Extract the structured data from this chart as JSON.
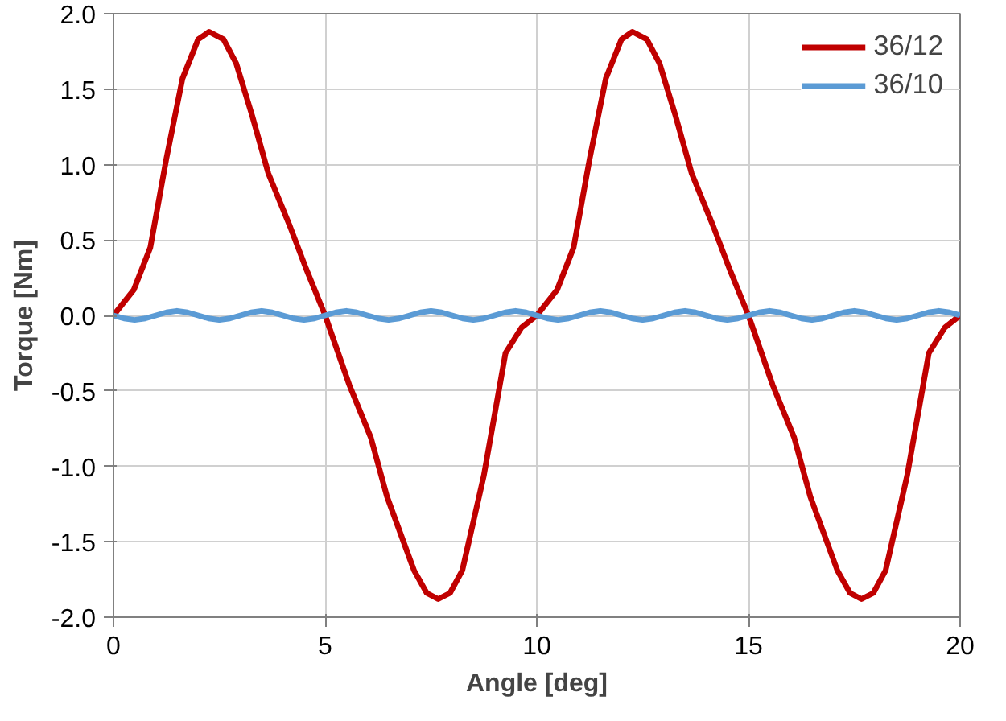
{
  "chart_data": {
    "type": "line",
    "xlabel": "Angle [deg]",
    "ylabel": "Torque [Nm]",
    "xlim": [
      0,
      20
    ],
    "ylim": [
      -2.0,
      2.0
    ],
    "xticks": [
      0,
      5,
      10,
      15,
      20
    ],
    "yticks": [
      {
        "value": -2.0,
        "label": "-2.0"
      },
      {
        "value": -1.5,
        "label": "-1.5"
      },
      {
        "value": -1.0,
        "label": "-1.0"
      },
      {
        "value": -0.5,
        "label": "-0.5"
      },
      {
        "value": 0,
        "label": "0.0"
      },
      {
        "value": 0.5,
        "label": "0.5"
      },
      {
        "value": 1.0,
        "label": "1.0"
      },
      {
        "value": 1.5,
        "label": "1.5"
      },
      {
        "value": 2.0,
        "label": "2.0"
      }
    ],
    "grid": true,
    "legend": "top right",
    "marker": "none",
    "line_style": "solid",
    "series": [
      {
        "name": "36/12",
        "color": "#c00000",
        "x": [
          0,
          0.48,
          0.87,
          1.25,
          1.63,
          2.0,
          2.26,
          2.6,
          2.9,
          3.28,
          3.66,
          4.17,
          4.55,
          5.0,
          5.57,
          6.08,
          6.46,
          7.1,
          7.4,
          7.67,
          7.95,
          8.24,
          8.75,
          9.26,
          9.64,
          10.0,
          10.48,
          10.87,
          11.25,
          11.63,
          12.0,
          12.26,
          12.6,
          12.9,
          13.28,
          13.66,
          14.17,
          14.55,
          15.0,
          15.57,
          16.08,
          16.46,
          17.1,
          17.4,
          17.67,
          17.95,
          18.24,
          18.75,
          19.26,
          19.64,
          20.0
        ],
        "values": [
          0,
          0.17,
          0.45,
          1.04,
          1.57,
          1.83,
          1.88,
          1.83,
          1.67,
          1.32,
          0.94,
          0.59,
          0.31,
          0,
          -0.46,
          -0.81,
          -1.2,
          -1.69,
          -1.84,
          -1.88,
          -1.84,
          -1.69,
          -1.06,
          -0.25,
          -0.08,
          0,
          0.17,
          0.45,
          1.04,
          1.57,
          1.83,
          1.88,
          1.83,
          1.67,
          1.32,
          0.94,
          0.59,
          0.31,
          0,
          -0.46,
          -0.81,
          -1.2,
          -1.69,
          -1.84,
          -1.88,
          -1.84,
          -1.69,
          -1.06,
          -0.25,
          -0.08,
          0
        ]
      },
      {
        "name": "36/10",
        "color": "#5b9bd5",
        "x": [
          0,
          0.25,
          0.5,
          0.75,
          1,
          1.25,
          1.5,
          1.75,
          2,
          2.25,
          2.5,
          2.75,
          3,
          3.25,
          3.5,
          3.75,
          4,
          4.25,
          4.5,
          4.75,
          5,
          5.25,
          5.5,
          5.75,
          6,
          6.25,
          6.5,
          6.75,
          7,
          7.25,
          7.5,
          7.75,
          8,
          8.25,
          8.5,
          8.75,
          9,
          9.25,
          9.5,
          9.75,
          10,
          10.25,
          10.5,
          10.75,
          11,
          11.25,
          11.5,
          11.75,
          12,
          12.25,
          12.5,
          12.75,
          13,
          13.25,
          13.5,
          13.75,
          14,
          14.25,
          14.5,
          14.75,
          15,
          15.25,
          15.5,
          15.75,
          16,
          16.25,
          16.5,
          16.75,
          17,
          17.25,
          17.5,
          17.75,
          18,
          18.25,
          18.5,
          18.75,
          19,
          19.25,
          19.5,
          19.75,
          20
        ],
        "values": [
          0,
          -0.02,
          -0.03,
          -0.02,
          0,
          0.02,
          0.03,
          0.02,
          0,
          -0.02,
          -0.03,
          -0.02,
          0,
          0.02,
          0.03,
          0.02,
          0,
          -0.02,
          -0.03,
          -0.02,
          0,
          0.02,
          0.03,
          0.02,
          0,
          -0.02,
          -0.03,
          -0.02,
          0,
          0.02,
          0.03,
          0.02,
          0,
          -0.02,
          -0.03,
          -0.02,
          0,
          0.02,
          0.03,
          0.02,
          0,
          -0.02,
          -0.03,
          -0.02,
          0,
          0.02,
          0.03,
          0.02,
          0,
          -0.02,
          -0.03,
          -0.02,
          0,
          0.02,
          0.03,
          0.02,
          0,
          -0.02,
          -0.03,
          -0.02,
          0,
          0.02,
          0.03,
          0.02,
          0,
          -0.02,
          -0.03,
          -0.02,
          0,
          0.02,
          0.03,
          0.02,
          0,
          -0.02,
          -0.03,
          -0.02,
          0,
          0.02,
          0.03,
          0.02,
          0
        ]
      }
    ]
  }
}
